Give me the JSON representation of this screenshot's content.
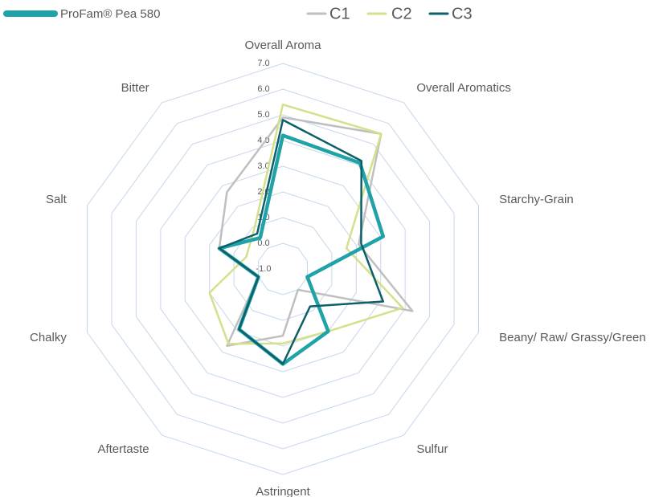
{
  "chart_data": {
    "type": "radar",
    "categories": [
      "Overall Aroma",
      "Overall Aromatics",
      "Starchy-Grain",
      "Beany/ Raw/ Grassy/Green",
      "Sulfur",
      "Astringent",
      "Aftertaste",
      "Chalky",
      "Salt",
      "Bitter"
    ],
    "ylim": [
      -1,
      7
    ],
    "yticks": [
      {
        "value": -1,
        "label": "-1.0"
      },
      {
        "value": 0,
        "label": "0.0"
      },
      {
        "value": 1,
        "label": "1.0"
      },
      {
        "value": 2,
        "label": "2.0"
      },
      {
        "value": 3,
        "label": "3.0"
      },
      {
        "value": 4,
        "label": "4.0"
      },
      {
        "value": 5,
        "label": "5.0"
      },
      {
        "value": 6,
        "label": "6.0"
      },
      {
        "value": 7,
        "label": "7.0"
      }
    ],
    "grid": true,
    "series": [
      {
        "name": "ProFam® Pea 580",
        "color": "#1fa2a8",
        "values": [
          4.2,
          4.1,
          3.1,
          0.0,
          2.0,
          2.7,
          1.9,
          0.0,
          1.6,
          0.5
        ]
      },
      {
        "name": "C1",
        "color": "#bfbfbf",
        "values": [
          4.9,
          5.5,
          2.1,
          4.3,
          0.0,
          1.6,
          2.7,
          0.0,
          1.6,
          2.7
        ]
      },
      {
        "name": "C2",
        "color": "#d4e08a",
        "values": [
          5.4,
          5.5,
          1.6,
          3.9,
          2.0,
          1.9,
          2.6,
          2.0,
          0.5,
          0.9
        ]
      },
      {
        "name": "C3",
        "color": "#0d5f6a",
        "values": [
          4.8,
          4.2,
          2.2,
          3.1,
          0.8,
          2.7,
          1.9,
          0.0,
          1.6,
          0.7
        ]
      }
    ]
  }
}
